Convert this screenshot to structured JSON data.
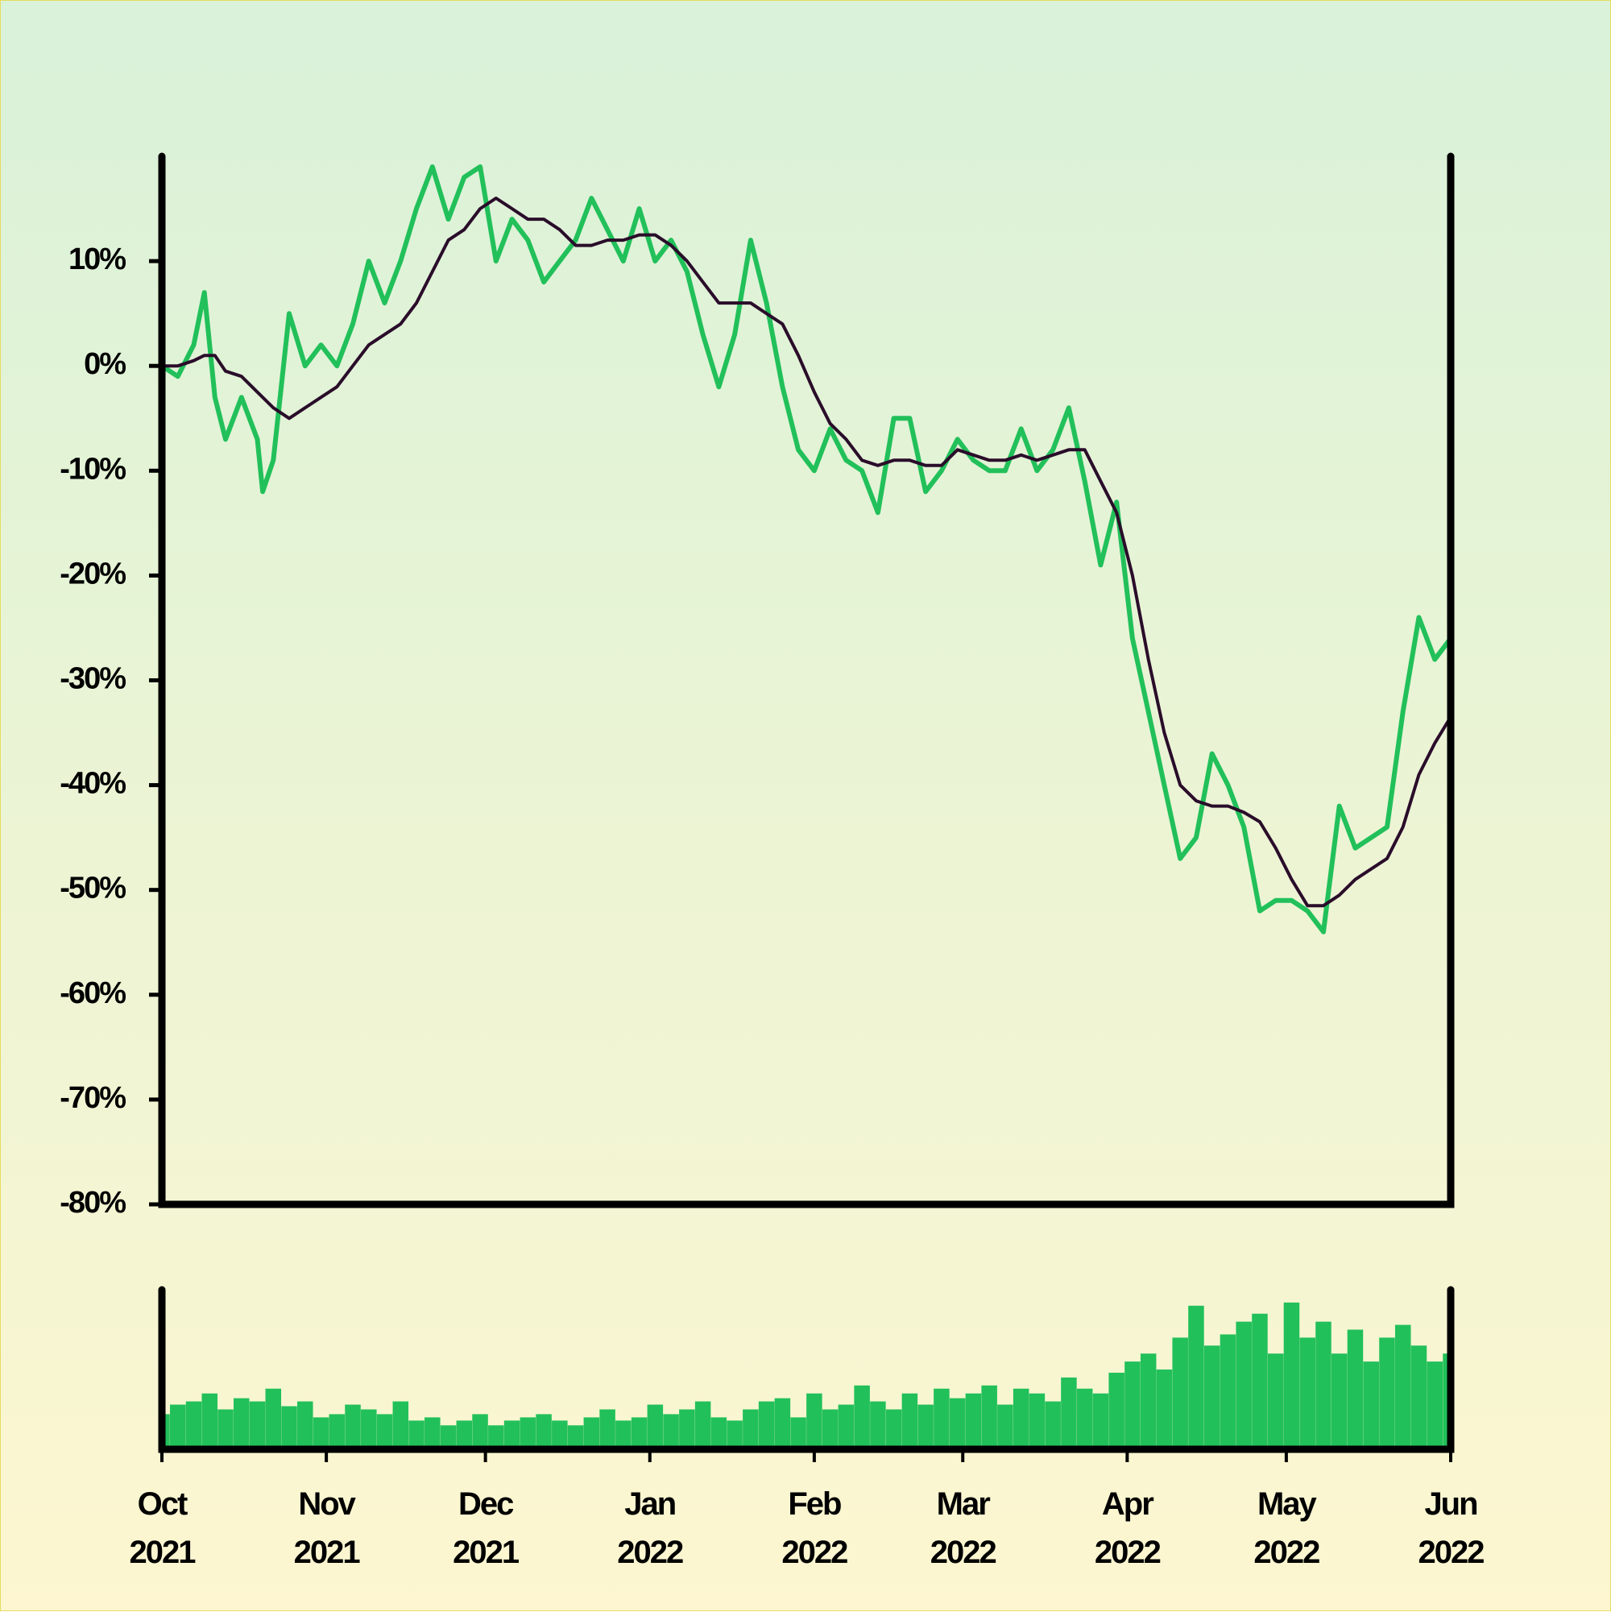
{
  "chart_data": [
    {
      "type": "line",
      "x": [
        0,
        3,
        6,
        8,
        10,
        12,
        15,
        18,
        19,
        21,
        24,
        27,
        30,
        33,
        36,
        39,
        42,
        45,
        48,
        51,
        54,
        57,
        60,
        63,
        66,
        69,
        72,
        75,
        78,
        81,
        84,
        87,
        90,
        93,
        96,
        99,
        102,
        105,
        108,
        111,
        114,
        117,
        120,
        123,
        126,
        129,
        132,
        135,
        138,
        141,
        144,
        147,
        150,
        153,
        156,
        159,
        162,
        165,
        168,
        171,
        174,
        177,
        180,
        183,
        186,
        189,
        192,
        195,
        198,
        201,
        204,
        207,
        210,
        213,
        216,
        219,
        222,
        225,
        228,
        231,
        234,
        237,
        240,
        243
      ],
      "series": [
        {
          "color": "#22c05a",
          "values": [
            0,
            -1,
            2,
            7,
            -3,
            -7,
            -3,
            -7,
            -12,
            -9,
            5,
            0,
            2,
            0,
            4,
            10,
            6,
            10,
            15,
            19,
            14,
            18,
            19,
            10,
            14,
            12,
            8,
            10,
            12,
            16,
            13,
            10,
            15,
            10,
            12,
            9,
            3,
            -2,
            3,
            12,
            6,
            -2,
            -8,
            -10,
            -6,
            -9,
            -10,
            -14,
            -5,
            -5,
            -12,
            -10,
            -7,
            -9,
            -10,
            -10,
            -6,
            -10,
            -8,
            -4,
            -11,
            -19,
            -13,
            -26,
            -33,
            -40,
            -47,
            -45,
            -37,
            -40,
            -44,
            -52,
            -51,
            -51,
            -52,
            -54,
            -42,
            -46,
            -45,
            -44,
            -33,
            -24,
            -28,
            -26
          ]
        },
        {
          "color": "#2a0d2a",
          "values": [
            0,
            0,
            0.5,
            1,
            1,
            -0.5,
            -1,
            -2.5,
            -3,
            -4,
            -5,
            -4,
            -3,
            -2,
            0,
            2,
            3,
            4,
            6,
            9,
            12,
            13,
            15,
            16,
            15,
            14,
            14,
            13,
            11.5,
            11.5,
            12,
            12,
            12.5,
            12.5,
            11.5,
            10,
            8,
            6,
            6,
            6,
            5,
            4,
            1,
            -2.5,
            -5.5,
            -7,
            -9,
            -9.5,
            -9,
            -9,
            -9.5,
            -9.5,
            -8,
            -8.5,
            -9,
            -9,
            -8.5,
            -9,
            -8.5,
            -8,
            -8,
            -11,
            -14,
            -20,
            -28,
            -35,
            -40,
            -41.5,
            -42,
            -42,
            -42.6,
            -43.5,
            -46,
            -49,
            -51.5,
            -51.5,
            -50.5,
            -49,
            -48,
            -47,
            -44,
            -39,
            -36,
            -33.5
          ]
        }
      ],
      "xlim": [
        0,
        243
      ],
      "ylim": [
        -80,
        20
      ],
      "yticks": [
        {
          "value": 10,
          "label": "10%"
        },
        {
          "value": 0,
          "label": "0%"
        },
        {
          "value": -10,
          "label": "-10%"
        },
        {
          "value": -20,
          "label": "-20%"
        },
        {
          "value": -30,
          "label": "-30%"
        },
        {
          "value": -40,
          "label": "-40%"
        },
        {
          "value": -50,
          "label": "-50%"
        },
        {
          "value": -60,
          "label": "-60%"
        },
        {
          "value": -70,
          "label": "-70%"
        },
        {
          "value": -80,
          "label": "-80%"
        }
      ]
    },
    {
      "type": "bar",
      "x": [
        0,
        3,
        6,
        9,
        12,
        15,
        18,
        21,
        24,
        27,
        30,
        33,
        36,
        39,
        42,
        45,
        48,
        51,
        54,
        57,
        60,
        63,
        66,
        69,
        72,
        75,
        78,
        81,
        84,
        87,
        90,
        93,
        96,
        99,
        102,
        105,
        108,
        111,
        114,
        117,
        120,
        123,
        126,
        129,
        132,
        135,
        138,
        141,
        144,
        147,
        150,
        153,
        156,
        159,
        162,
        165,
        168,
        171,
        174,
        177,
        180,
        183,
        186,
        189,
        192,
        195,
        198,
        201,
        204,
        207,
        210,
        213,
        216,
        219,
        222,
        225,
        228,
        231,
        234,
        237,
        240,
        243
      ],
      "values": [
        22,
        28,
        30,
        35,
        25,
        32,
        30,
        38,
        27,
        30,
        20,
        22,
        28,
        25,
        22,
        30,
        18,
        20,
        15,
        18,
        22,
        15,
        18,
        20,
        22,
        18,
        15,
        20,
        25,
        18,
        20,
        28,
        22,
        25,
        30,
        20,
        18,
        25,
        30,
        32,
        20,
        35,
        25,
        28,
        40,
        30,
        25,
        35,
        28,
        38,
        32,
        35,
        40,
        28,
        38,
        35,
        30,
        45,
        38,
        35,
        48,
        55,
        60,
        50,
        70,
        90,
        65,
        72,
        80,
        85,
        60,
        92,
        70,
        80,
        60,
        75,
        55,
        70,
        78,
        65,
        55,
        60
      ],
      "color": "#22c05a",
      "xlim": [
        0,
        243
      ],
      "ylim": [
        0,
        100
      ],
      "xticks": [
        {
          "value": 0,
          "label": "Oct\n2021"
        },
        {
          "value": 31,
          "label": "Nov\n2021"
        },
        {
          "value": 61,
          "label": "Dec\n2021"
        },
        {
          "value": 92,
          "label": "Jan\n2022"
        },
        {
          "value": 123,
          "label": "Feb\n2022"
        },
        {
          "value": 151,
          "label": "Mar\n2022"
        },
        {
          "value": 182,
          "label": "Apr\n2022"
        },
        {
          "value": 212,
          "label": "May\n2022"
        },
        {
          "value": 243,
          "label": "Jun\n2022"
        }
      ]
    }
  ]
}
